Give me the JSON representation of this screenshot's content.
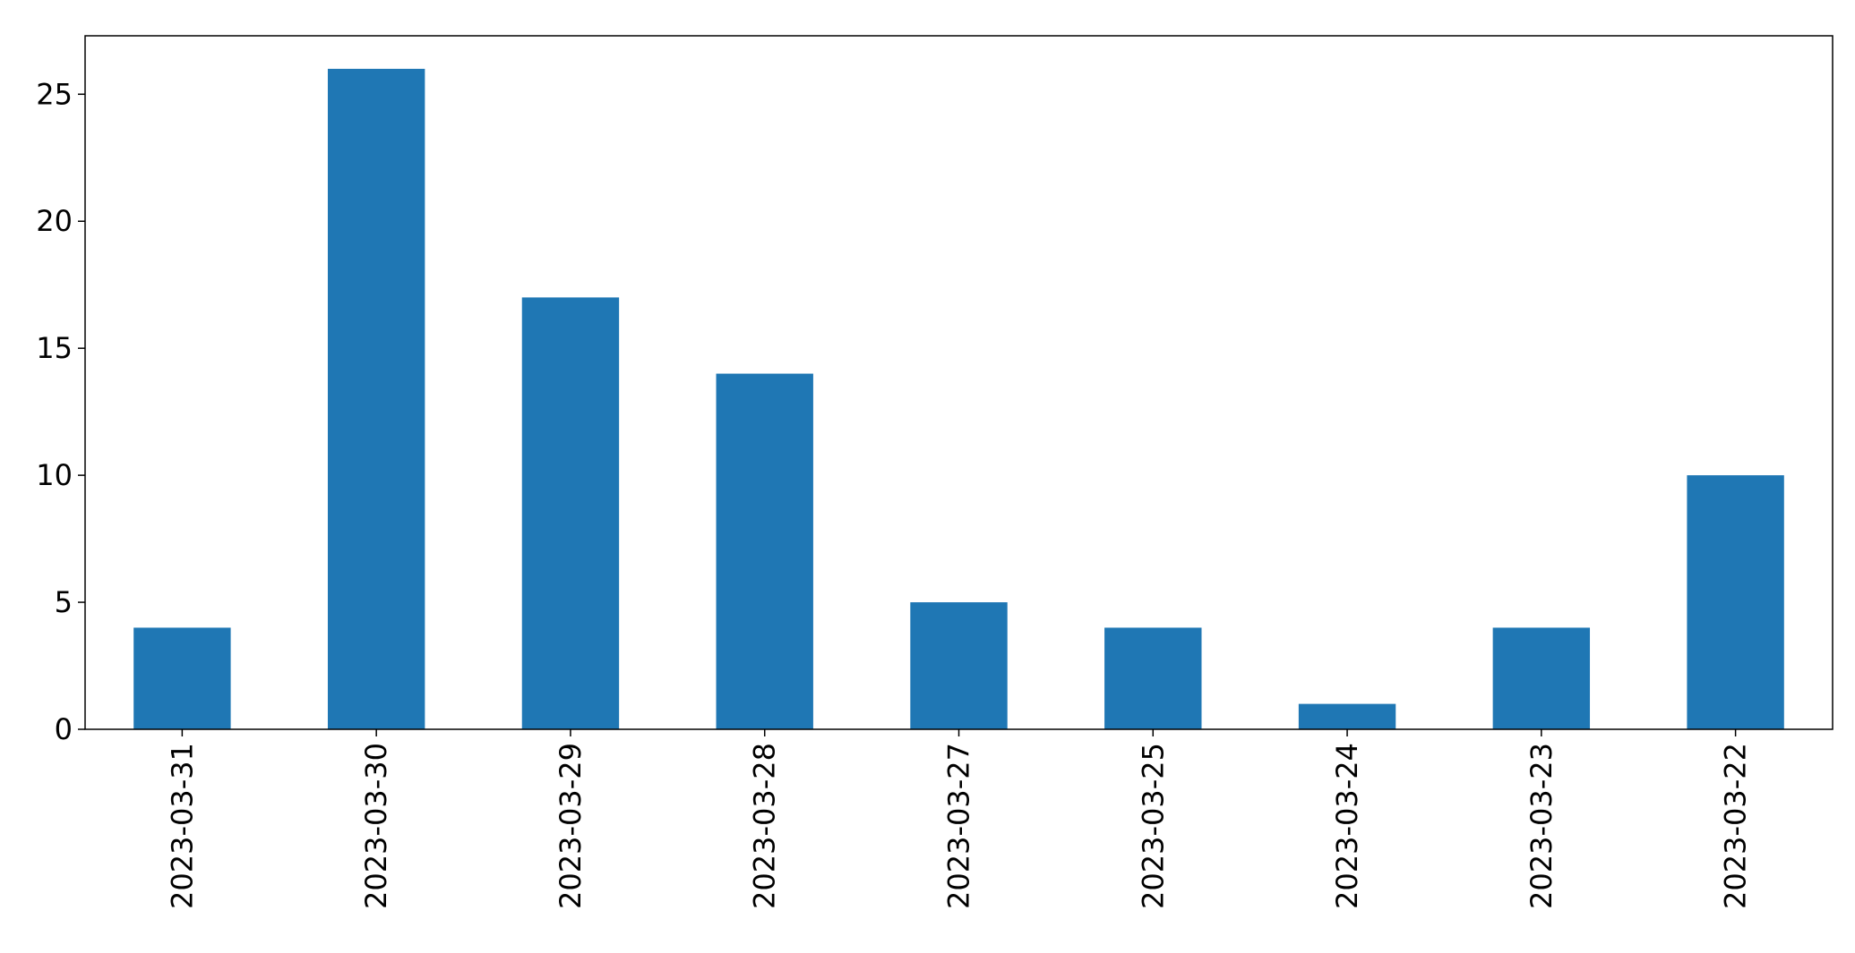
{
  "chart_data": {
    "type": "bar",
    "title": "",
    "xlabel": "",
    "ylabel": "",
    "categories": [
      "2023-03-31",
      "2023-03-30",
      "2023-03-29",
      "2023-03-28",
      "2023-03-27",
      "2023-03-25",
      "2023-03-24",
      "2023-03-23",
      "2023-03-22"
    ],
    "values": [
      4,
      26,
      17,
      14,
      5,
      4,
      1,
      4,
      10
    ],
    "ylim": [
      0,
      27.3
    ],
    "yticks": [
      0,
      5,
      10,
      15,
      20,
      25
    ],
    "grid": false,
    "legend": "none",
    "bar_color": "#1f77b4"
  }
}
